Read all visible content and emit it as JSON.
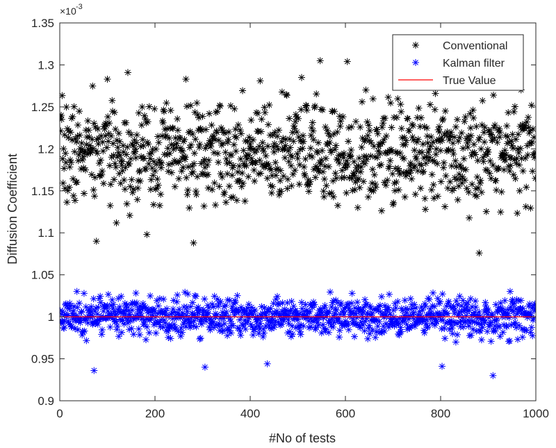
{
  "chart_data": {
    "type": "scatter",
    "xlabel": "#No of tests",
    "ylabel": "Diffusion Coefficient",
    "y_exponent_label": "×10",
    "y_exponent_power": "-3",
    "xlim": [
      0,
      1000
    ],
    "ylim": [
      0.9,
      1.35
    ],
    "x_ticks": [
      0,
      200,
      400,
      600,
      800,
      1000
    ],
    "x_tick_labels": [
      "0",
      "200",
      "400",
      "600",
      "800",
      "1000"
    ],
    "y_ticks": [
      0.9,
      0.95,
      1.0,
      1.05,
      1.1,
      1.15,
      1.2,
      1.25,
      1.3,
      1.35
    ],
    "y_tick_labels": [
      "0.9",
      "0.95",
      "1",
      "1.05",
      "1.1",
      "1.15",
      "1.2",
      "1.25",
      "1.3",
      "1.35"
    ],
    "grid": false,
    "legend_position": "top-right",
    "series": [
      {
        "name": "Conventional",
        "marker": "asterisk",
        "color": "#000000",
        "n_points": 1000,
        "mean": 1.195,
        "std": 0.035,
        "notable_points": [
          {
            "x": 77,
            "y": 1.09
          },
          {
            "x": 100,
            "y": 1.283
          },
          {
            "x": 143,
            "y": 1.291
          },
          {
            "x": 183,
            "y": 1.098
          },
          {
            "x": 265,
            "y": 1.283
          },
          {
            "x": 281,
            "y": 1.088
          },
          {
            "x": 421,
            "y": 1.281
          },
          {
            "x": 508,
            "y": 1.285
          },
          {
            "x": 547,
            "y": 1.305
          },
          {
            "x": 604,
            "y": 1.304
          },
          {
            "x": 881,
            "y": 1.076
          }
        ]
      },
      {
        "name": "Kalman filter",
        "marker": "asterisk",
        "color": "#0000ff",
        "n_points": 1000,
        "mean": 1.0,
        "std": 0.014,
        "notable_points": [
          {
            "x": 72,
            "y": 0.936
          },
          {
            "x": 305,
            "y": 0.94
          },
          {
            "x": 436,
            "y": 0.944
          },
          {
            "x": 803,
            "y": 0.941
          },
          {
            "x": 910,
            "y": 0.93
          }
        ]
      },
      {
        "name": "True Value",
        "type": "line",
        "color": "#ff0000",
        "x": [
          0,
          1000
        ],
        "y": [
          1.0,
          1.0
        ]
      }
    ]
  }
}
